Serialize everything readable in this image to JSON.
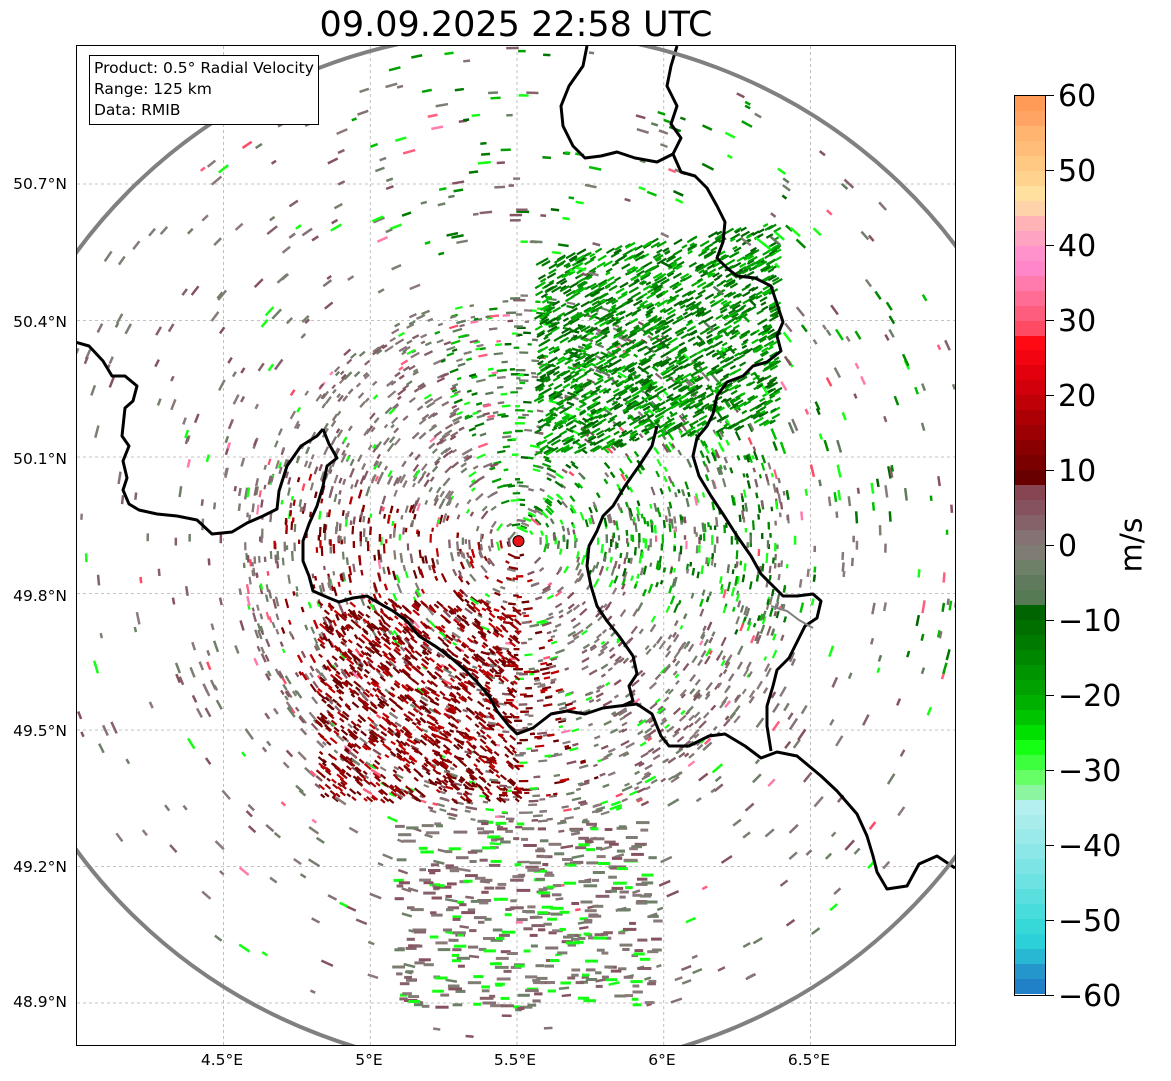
{
  "title": "09.09.2025 22:58 UTC",
  "info_box": {
    "product": "Product: 0.5° Radial Velocity",
    "range": "Range: 125 km",
    "data": "Data: RMIB"
  },
  "axes": {
    "lon_ticks": [
      "4.5°E",
      "5°E",
      "5.5°E",
      "6°E",
      "6.5°E"
    ],
    "lon_values": [
      4.5,
      5.0,
      5.5,
      6.0,
      6.5
    ],
    "lat_ticks": [
      "50.7°N",
      "50.4°N",
      "50.1°N",
      "49.8°N",
      "49.5°N",
      "49.2°N",
      "48.9°N"
    ],
    "lat_values": [
      50.7,
      50.4,
      50.1,
      49.8,
      49.5,
      49.2,
      48.9
    ],
    "lon_range": [
      4.0,
      7.0
    ],
    "lat_range": [
      48.8,
      51.0
    ],
    "grid": true
  },
  "radar": {
    "lon": 5.505,
    "lat": 49.915,
    "range_km": 125,
    "site_marker_color": "#e8141a",
    "range_ring_color": "#808080"
  },
  "colorbar": {
    "label": "m/s",
    "min": -60,
    "max": 60,
    "ticks": [
      "60",
      "50",
      "40",
      "30",
      "20",
      "10",
      "0",
      "−10",
      "−20",
      "−30",
      "−40",
      "−50",
      "−60"
    ],
    "tick_values": [
      60,
      50,
      40,
      30,
      20,
      10,
      0,
      -10,
      -20,
      -30,
      -40,
      -50,
      -60
    ],
    "colors_top_to_bottom": [
      "#ff9b57",
      "#ffa462",
      "#ffb56f",
      "#ffbd79",
      "#ffc883",
      "#ffd28e",
      "#ffe09e",
      "#ffd3a9",
      "#ffb3b6",
      "#ffa3c2",
      "#ff92cd",
      "#ff87c9",
      "#ff7bae",
      "#ff6d94",
      "#ff5d7d",
      "#ff4a64",
      "#ff0a14",
      "#f20510",
      "#e3000d",
      "#d1000a",
      "#bf0007",
      "#ad0005",
      "#9c0003",
      "#8a0001",
      "#7a0000",
      "#690000",
      "#874552",
      "#86525f",
      "#856169",
      "#847274",
      "#7f7d73",
      "#6e8068",
      "#5f7a5c",
      "#557a54",
      "#006400",
      "#006f00",
      "#007b00",
      "#008700",
      "#009400",
      "#00a100",
      "#00b000",
      "#00c400",
      "#00e000",
      "#14ff14",
      "#3dff3d",
      "#66ff66",
      "#8cf5a0",
      "#b4f0f0",
      "#a8ecec",
      "#9aeaea",
      "#8ce8e8",
      "#7ce4e4",
      "#6ce2e2",
      "#5adede",
      "#48dcdc",
      "#36d8d8",
      "#2cd0d8",
      "#28b8d4",
      "#2496cc",
      "#2080c8"
    ]
  }
}
